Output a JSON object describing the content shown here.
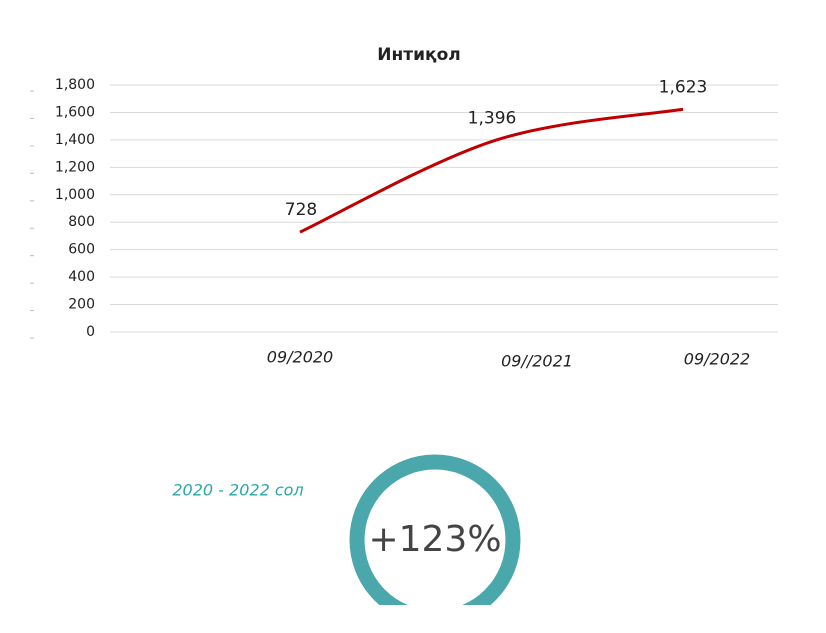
{
  "chart_data": {
    "type": "line",
    "title": "Интиқол",
    "categories": [
      "09/2020",
      "09//2021",
      "09/2022"
    ],
    "series": [
      {
        "color": "#c00000",
        "values": [
          728,
          1396,
          1623
        ],
        "value_labels": [
          "728",
          "1,396",
          "1,623"
        ]
      }
    ],
    "ylim": [
      0,
      1800
    ],
    "yticks": [
      0,
      200,
      400,
      600,
      800,
      {
        "value": 1000,
        "label": "1,000"
      },
      {
        "value": 1200,
        "label": "1,200"
      },
      {
        "value": 1400,
        "label": "1,400"
      },
      {
        "value": 1600,
        "label": "1,600"
      },
      {
        "value": 1800,
        "label": "1,800"
      }
    ],
    "grid": true
  },
  "badge": {
    "caption": "2020 - 2022 сол",
    "value": "+123%"
  }
}
